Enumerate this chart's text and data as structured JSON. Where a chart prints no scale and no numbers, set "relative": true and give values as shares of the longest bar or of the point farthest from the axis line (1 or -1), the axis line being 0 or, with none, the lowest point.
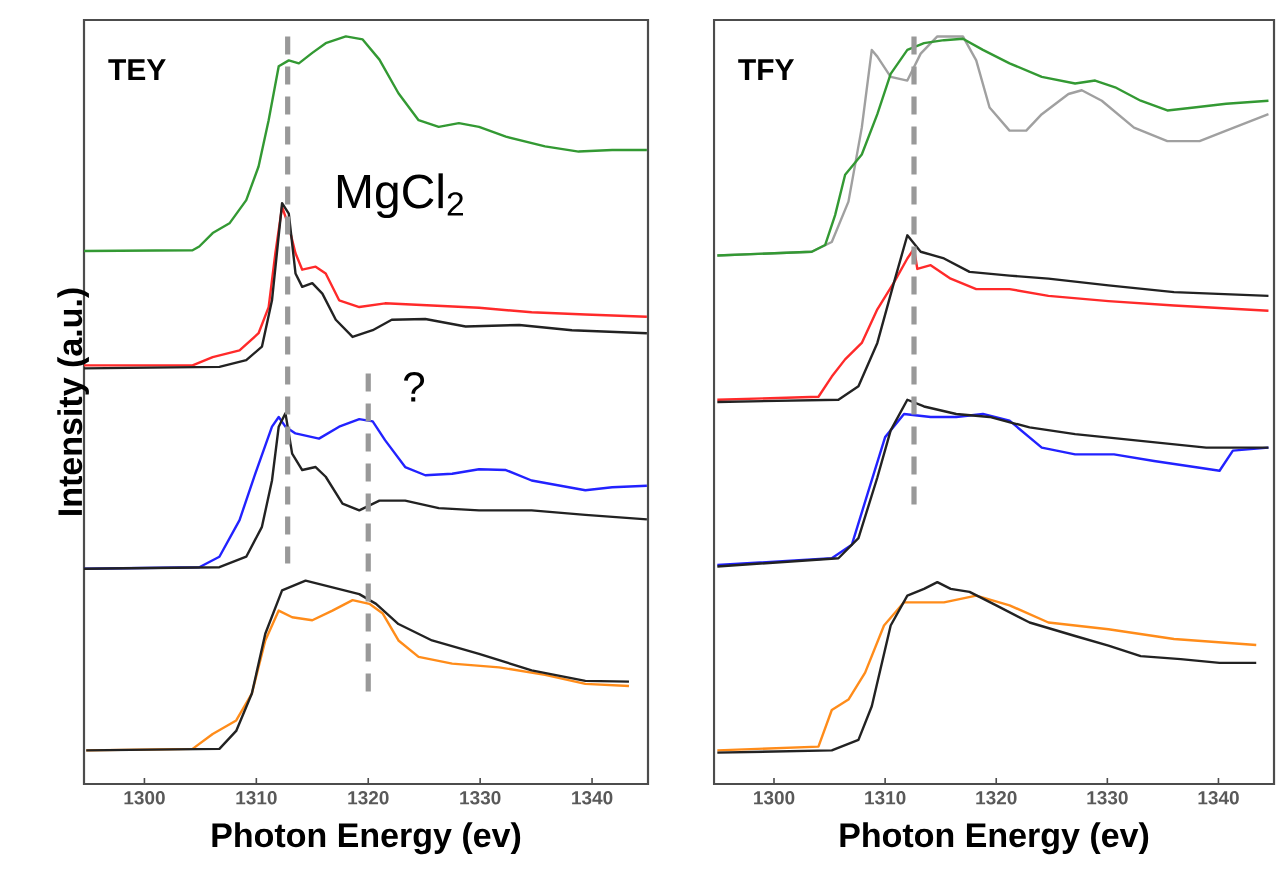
{
  "chart_data": [
    {
      "type": "line",
      "relative": true,
      "title": "TEY",
      "xlabel": "Photon Energy (ev)",
      "ylabel": "Intensity (a.u.)",
      "tick_labels": "x",
      "xlim": [
        1294.6,
        1345
      ],
      "xticks": [
        1300,
        1310,
        1320,
        1330,
        1340
      ],
      "annotations": [
        "MgCl$_{2}$",
        "?"
      ],
      "series": [
        {
          "color": "#339933",
          "x": [
            1294.6,
            1304.3,
            1304.9,
            1306.1,
            1307.6,
            1309.1,
            1310.2,
            1311.1,
            1312.0,
            1312.9,
            1313.8,
            1315.0,
            1316.2,
            1318.0,
            1319.5,
            1321.0,
            1322.7,
            1324.5,
            1326.3,
            1328.1,
            1329.9,
            1332.3,
            1335.8,
            1338.8,
            1341.8,
            1344.9
          ],
          "values": [
            0.713,
            0.714,
            0.719,
            0.737,
            0.75,
            0.781,
            0.826,
            0.888,
            0.96,
            0.968,
            0.964,
            0.978,
            0.991,
            1.0,
            0.996,
            0.969,
            0.924,
            0.888,
            0.879,
            0.884,
            0.879,
            0.866,
            0.853,
            0.846,
            0.848,
            0.848
          ]
        },
        {
          "color": "#ff2a2a",
          "x": [
            1294.6,
            1304.3,
            1306.1,
            1308.5,
            1310.2,
            1311.1,
            1311.7,
            1312.3,
            1312.9,
            1313.5,
            1314.1,
            1315.3,
            1316.2,
            1317.4,
            1319.2,
            1321.5,
            1325.7,
            1329.9,
            1334.6,
            1339.4,
            1344.9
          ],
          "values": [
            0.56,
            0.56,
            0.571,
            0.58,
            0.603,
            0.638,
            0.71,
            0.772,
            0.746,
            0.71,
            0.688,
            0.692,
            0.683,
            0.647,
            0.638,
            0.643,
            0.64,
            0.637,
            0.631,
            0.628,
            0.625
          ]
        },
        {
          "color": "#222222",
          "x": [
            1294.6,
            1306.7,
            1309.1,
            1310.5,
            1311.4,
            1312.3,
            1312.9,
            1313.5,
            1314.1,
            1315.0,
            1315.9,
            1317.1,
            1318.6,
            1320.4,
            1322.1,
            1325.1,
            1328.7,
            1333.5,
            1338.2,
            1344.9
          ],
          "values": [
            0.556,
            0.558,
            0.567,
            0.585,
            0.647,
            0.777,
            0.763,
            0.683,
            0.665,
            0.67,
            0.656,
            0.621,
            0.598,
            0.607,
            0.621,
            0.622,
            0.612,
            0.614,
            0.607,
            0.603
          ]
        },
        {
          "color": "#2222ff",
          "x": [
            1294.6,
            1304.9,
            1306.7,
            1308.5,
            1309.9,
            1311.4,
            1312.0,
            1312.6,
            1313.5,
            1315.6,
            1317.4,
            1319.2,
            1320.4,
            1321.5,
            1323.3,
            1325.1,
            1327.5,
            1329.9,
            1332.3,
            1334.6,
            1339.4,
            1341.8,
            1344.9
          ],
          "values": [
            0.288,
            0.29,
            0.304,
            0.353,
            0.415,
            0.478,
            0.491,
            0.478,
            0.469,
            0.462,
            0.478,
            0.488,
            0.485,
            0.46,
            0.424,
            0.413,
            0.415,
            0.421,
            0.42,
            0.406,
            0.393,
            0.397,
            0.399
          ]
        },
        {
          "color": "#222222",
          "x": [
            1294.6,
            1306.7,
            1309.1,
            1310.5,
            1311.4,
            1312.0,
            1312.6,
            1313.2,
            1314.1,
            1315.3,
            1316.2,
            1317.7,
            1319.2,
            1321.0,
            1323.3,
            1326.3,
            1329.9,
            1334.6,
            1339.4,
            1344.9
          ],
          "values": [
            0.288,
            0.29,
            0.304,
            0.344,
            0.406,
            0.478,
            0.496,
            0.442,
            0.42,
            0.424,
            0.411,
            0.375,
            0.366,
            0.379,
            0.379,
            0.369,
            0.366,
            0.366,
            0.36,
            0.354
          ]
        },
        {
          "color": "#ff8c1a",
          "x": [
            1294.8,
            1304.3,
            1306.1,
            1308.2,
            1309.6,
            1310.8,
            1312.0,
            1313.2,
            1315.0,
            1316.8,
            1318.6,
            1320.1,
            1321.3,
            1322.7,
            1324.5,
            1327.5,
            1331.7,
            1335.8,
            1339.4,
            1343.3
          ],
          "values": [
            0.045,
            0.047,
            0.067,
            0.085,
            0.121,
            0.192,
            0.232,
            0.223,
            0.219,
            0.232,
            0.246,
            0.241,
            0.228,
            0.192,
            0.17,
            0.161,
            0.156,
            0.146,
            0.134,
            0.131
          ]
        },
        {
          "color": "#222222",
          "x": [
            1294.8,
            1306.7,
            1308.2,
            1309.6,
            1310.8,
            1312.3,
            1314.4,
            1316.8,
            1319.2,
            1320.7,
            1322.7,
            1325.7,
            1329.9,
            1334.6,
            1339.4,
            1343.3
          ],
          "values": [
            0.045,
            0.047,
            0.071,
            0.121,
            0.201,
            0.259,
            0.272,
            0.263,
            0.254,
            0.241,
            0.214,
            0.192,
            0.174,
            0.152,
            0.138,
            0.137
          ]
        },
        {
          "color": "#999999",
          "line_style": "dashed",
          "x": [
            1312.8,
            1312.8
          ],
          "values": [
            1.0,
            0.295
          ]
        },
        {
          "color": "#999999",
          "line_style": "dashed",
          "x": [
            1320,
            1320
          ],
          "values": [
            0.549,
            0.116
          ]
        }
      ]
    },
    {
      "type": "line",
      "relative": true,
      "title": "TFY",
      "xlabel": "Photon Energy (ev)",
      "tick_labels": "x",
      "xlim": [
        1294.6,
        1345
      ],
      "xticks": [
        1300,
        1310,
        1320,
        1330,
        1340
      ],
      "series": [
        {
          "color": "#a0a0a0",
          "x": [
            1294.9,
            1303.4,
            1305.2,
            1306.7,
            1307.9,
            1308.8,
            1309.3,
            1310.5,
            1312.0,
            1313.2,
            1314.7,
            1317.0,
            1318.2,
            1319.4,
            1321.2,
            1322.7,
            1324.1,
            1326.5,
            1327.7,
            1329.5,
            1332.4,
            1335.4,
            1338.3,
            1340.7,
            1344.5
          ],
          "values": [
            0.707,
            0.712,
            0.725,
            0.779,
            0.878,
            0.982,
            0.973,
            0.946,
            0.941,
            0.977,
            1.0,
            1.0,
            0.968,
            0.905,
            0.874,
            0.874,
            0.896,
            0.923,
            0.928,
            0.914,
            0.878,
            0.86,
            0.86,
            0.874,
            0.896
          ]
        },
        {
          "color": "#339933",
          "x": [
            1294.9,
            1303.4,
            1304.6,
            1305.5,
            1306.4,
            1307.9,
            1309.3,
            1310.5,
            1312.0,
            1313.5,
            1315.3,
            1317.0,
            1318.8,
            1321.2,
            1324.1,
            1327.1,
            1328.9,
            1330.7,
            1333.0,
            1335.4,
            1337.8,
            1340.7,
            1344.5
          ],
          "values": [
            0.707,
            0.712,
            0.721,
            0.761,
            0.815,
            0.842,
            0.896,
            0.95,
            0.982,
            0.991,
            0.995,
            0.997,
            0.982,
            0.964,
            0.946,
            0.937,
            0.941,
            0.932,
            0.914,
            0.901,
            0.905,
            0.91,
            0.914
          ]
        },
        {
          "color": "#ff2a2a",
          "x": [
            1294.9,
            1304.0,
            1305.2,
            1306.4,
            1307.9,
            1309.3,
            1310.8,
            1312.0,
            1312.6,
            1312.9,
            1314.1,
            1315.9,
            1318.2,
            1321.2,
            1324.7,
            1330.1,
            1336.0,
            1344.5
          ],
          "values": [
            0.514,
            0.518,
            0.545,
            0.568,
            0.59,
            0.635,
            0.671,
            0.703,
            0.716,
            0.689,
            0.694,
            0.676,
            0.662,
            0.662,
            0.653,
            0.646,
            0.64,
            0.633
          ]
        },
        {
          "color": "#222222",
          "x": [
            1294.9,
            1305.8,
            1307.6,
            1309.3,
            1310.8,
            1312.0,
            1313.2,
            1315.3,
            1317.6,
            1321.2,
            1324.7,
            1330.1,
            1336.0,
            1344.5
          ],
          "values": [
            0.511,
            0.514,
            0.532,
            0.59,
            0.671,
            0.734,
            0.712,
            0.703,
            0.685,
            0.68,
            0.676,
            0.667,
            0.658,
            0.653
          ]
        },
        {
          "color": "#2222ff",
          "x": [
            1294.9,
            1305.2,
            1307.0,
            1308.5,
            1310.0,
            1311.7,
            1314.1,
            1316.4,
            1318.8,
            1321.2,
            1324.1,
            1327.1,
            1330.6,
            1334.2,
            1338.3,
            1340.1,
            1341.3,
            1344.5
          ],
          "values": [
            0.293,
            0.302,
            0.32,
            0.392,
            0.464,
            0.495,
            0.491,
            0.491,
            0.495,
            0.486,
            0.45,
            0.441,
            0.441,
            0.432,
            0.423,
            0.419,
            0.446,
            0.45
          ]
        },
        {
          "color": "#222222",
          "x": [
            1294.9,
            1305.8,
            1307.6,
            1309.3,
            1310.5,
            1312.0,
            1313.5,
            1316.4,
            1319.4,
            1323.0,
            1327.1,
            1333.0,
            1338.9,
            1344.5
          ],
          "values": [
            0.291,
            0.302,
            0.329,
            0.41,
            0.473,
            0.514,
            0.505,
            0.495,
            0.491,
            0.477,
            0.468,
            0.459,
            0.45,
            0.45
          ]
        },
        {
          "color": "#ff8c1a",
          "x": [
            1294.9,
            1304.0,
            1305.2,
            1306.7,
            1308.2,
            1309.9,
            1311.7,
            1315.3,
            1318.2,
            1321.2,
            1324.7,
            1330.1,
            1336.0,
            1343.4
          ],
          "values": [
            0.045,
            0.05,
            0.099,
            0.113,
            0.149,
            0.212,
            0.243,
            0.243,
            0.252,
            0.239,
            0.216,
            0.207,
            0.194,
            0.186
          ]
        },
        {
          "color": "#222222",
          "x": [
            1294.9,
            1305.2,
            1307.6,
            1308.8,
            1310.5,
            1312.0,
            1313.5,
            1314.7,
            1315.9,
            1317.6,
            1320.0,
            1323.0,
            1327.1,
            1330.1,
            1333.0,
            1336.6,
            1340.1,
            1343.4
          ],
          "values": [
            0.042,
            0.045,
            0.059,
            0.104,
            0.212,
            0.252,
            0.261,
            0.27,
            0.261,
            0.257,
            0.239,
            0.216,
            0.198,
            0.185,
            0.171,
            0.167,
            0.162,
            0.162
          ]
        },
        {
          "color": "#999999",
          "line_style": "dashed",
          "x": [
            1312.6,
            1312.6
          ],
          "values": [
            1.0,
            0.365
          ]
        }
      ]
    }
  ]
}
